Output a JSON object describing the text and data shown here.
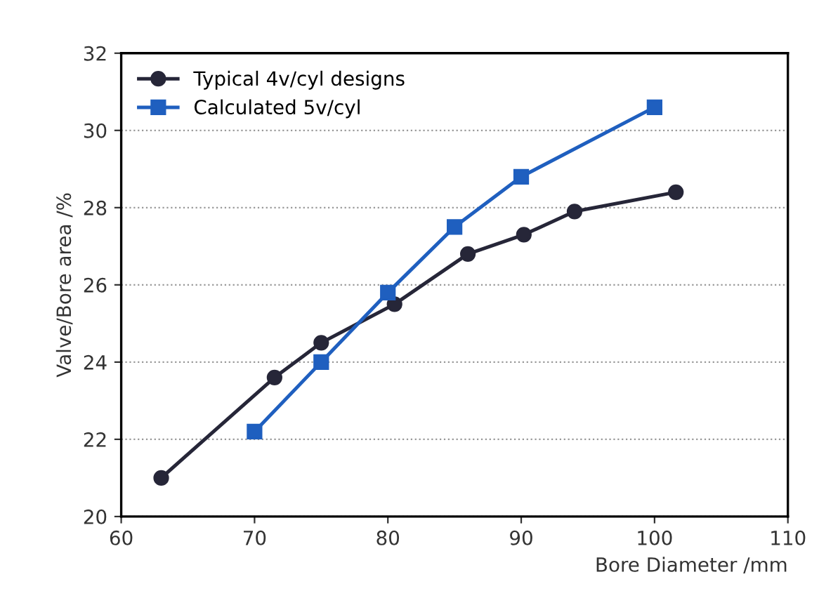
{
  "chart_data": {
    "type": "line",
    "xlabel": "Bore Diameter /mm",
    "ylabel": "Valve/Bore area /%",
    "series": [
      {
        "name": "Typical 4v/cyl designs",
        "color": "#262638",
        "marker": "circle",
        "x": [
          63,
          71.5,
          75,
          80.5,
          86,
          90.2,
          94,
          101.6
        ],
        "values": [
          21,
          23.6,
          24.5,
          25.5,
          26.8,
          27.3,
          27.9,
          28.4
        ]
      },
      {
        "name": "Calculated 5v/cyl",
        "color": "#1f5fbf",
        "marker": "square",
        "x": [
          70,
          75,
          80,
          85,
          90,
          100
        ],
        "values": [
          22.2,
          24.0,
          25.8,
          27.5,
          28.8,
          30.6
        ]
      }
    ],
    "xlim": [
      60,
      110
    ],
    "xticks": [
      60,
      70,
      80,
      90,
      100,
      110
    ],
    "ylim": [
      20,
      32
    ],
    "yticks": [
      20,
      22,
      24,
      26,
      28,
      30,
      32
    ],
    "grid": "y",
    "legend": "top left"
  }
}
